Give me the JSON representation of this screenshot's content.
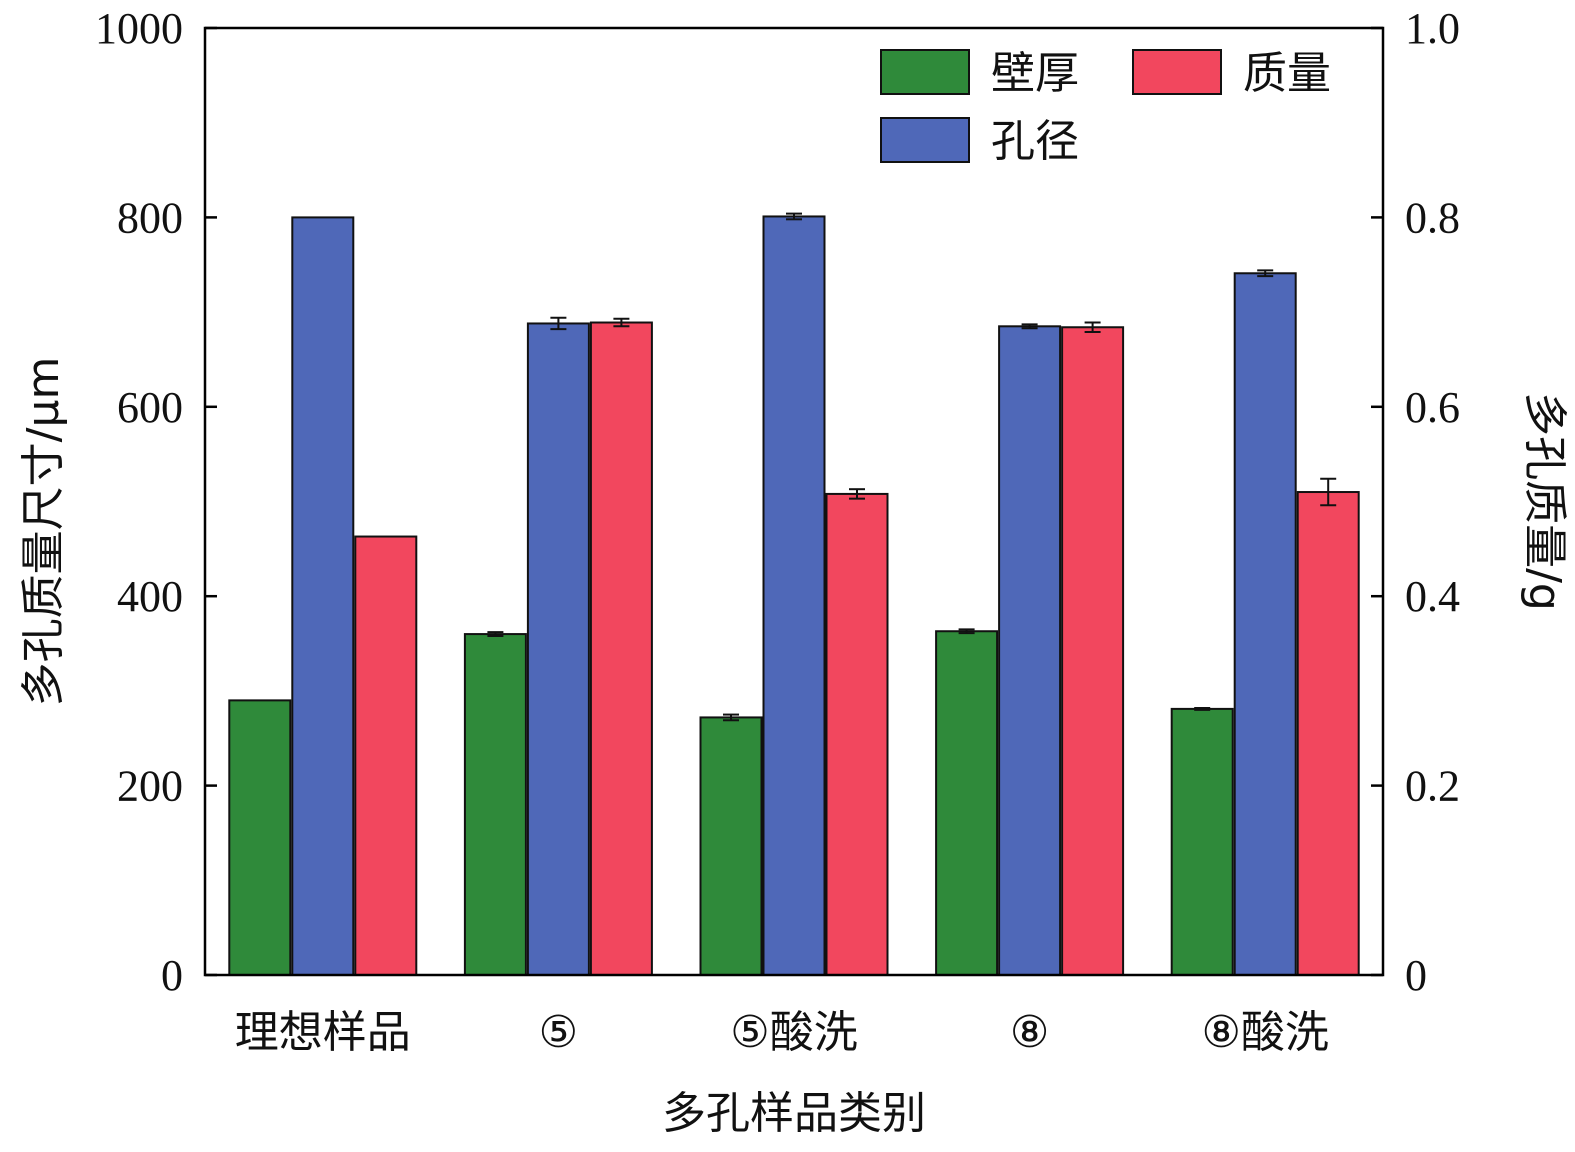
{
  "chart_data": {
    "type": "bar",
    "categories": [
      "理想样品",
      "⑤",
      "⑤酸洗",
      "⑧",
      "⑧酸洗"
    ],
    "xlabel": "多孔样品类别",
    "ylabel_left": "多孔质量尺寸/μm",
    "ylabel_right": "多孔质量/g",
    "ylim_left": [
      0,
      1000
    ],
    "ylim_right": [
      0,
      1.0
    ],
    "yticks_left": [
      0,
      200,
      400,
      600,
      800,
      1000
    ],
    "yticks_right": [
      "0",
      "0.2",
      "0.4",
      "0.6",
      "0.8",
      "1.0"
    ],
    "grid": false,
    "legend_position": "top-right",
    "series": [
      {
        "name": "壁厚",
        "axis": "left",
        "color": "#2f8a3a",
        "values": [
          290,
          360,
          272,
          363,
          281
        ],
        "errors": [
          0,
          2,
          3,
          2,
          1
        ]
      },
      {
        "name": "孔径",
        "axis": "left",
        "color": "#4f68b8",
        "values": [
          800,
          688,
          801,
          685,
          741
        ],
        "errors": [
          0,
          6,
          3,
          2,
          3
        ]
      },
      {
        "name": "质量",
        "axis": "right",
        "color": "#f2475e",
        "values": [
          0.463,
          0.689,
          0.508,
          0.684,
          0.51
        ],
        "errors": [
          0,
          0.004,
          0.005,
          0.005,
          0.014
        ]
      }
    ],
    "legend_order": [
      "壁厚",
      "质量",
      "孔径"
    ]
  }
}
